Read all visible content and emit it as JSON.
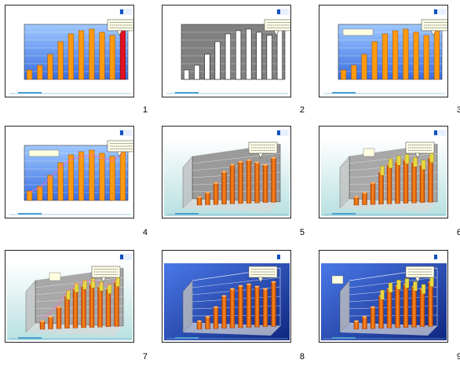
{
  "slides": [
    {
      "number": "1",
      "style": "flat-blue"
    },
    {
      "number": "2",
      "style": "flat-gray"
    },
    {
      "number": "3",
      "style": "flat-blue-legend"
    },
    {
      "number": "4",
      "style": "flat-blue-legend-line"
    },
    {
      "number": "5",
      "style": "3d-gray"
    },
    {
      "number": "6",
      "style": "3d-teal"
    },
    {
      "number": "7",
      "style": "3d-teal-line"
    },
    {
      "number": "8",
      "style": "3d-navy"
    },
    {
      "number": "9",
      "style": "3d-navy-line"
    }
  ],
  "chart_data": {
    "type": "bar",
    "values": [
      12,
      18,
      32,
      48,
      58,
      62,
      64,
      60,
      56,
      66
    ],
    "ylim": [
      0,
      70
    ]
  },
  "colors": {
    "bar_orange": "#ff9a10",
    "bar_red": "#e01020",
    "plot_blue_top": "#9fc8ff",
    "plot_blue_bottom": "#3a6ee0",
    "navy_bg": "#1838a8",
    "teal_bg": "#d8f0f0"
  }
}
